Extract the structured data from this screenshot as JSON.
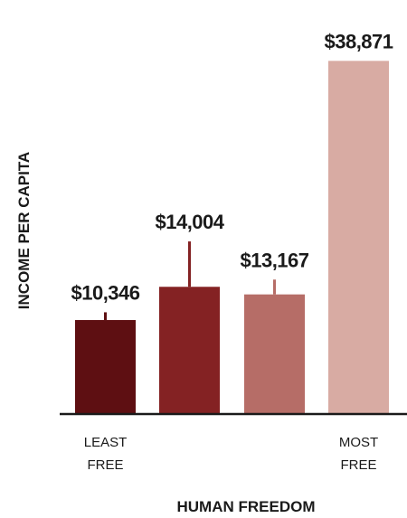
{
  "chart_data": {
    "type": "bar",
    "categories": [
      "LEAST FREE",
      "",
      "",
      "MOST FREE"
    ],
    "tick_labels": [
      [
        "LEAST",
        "FREE"
      ],
      [],
      [],
      [
        "MOST",
        "FREE"
      ]
    ],
    "values": [
      10346,
      14004,
      13167,
      38871
    ],
    "value_labels": [
      "$10,346",
      "$14,004",
      "$13,167",
      "$38,871"
    ],
    "error_upper": [
      11200,
      19000,
      14800,
      38871
    ],
    "bar_colors": [
      "#5e0f12",
      "#842223",
      "#b66d67",
      "#d8aba3"
    ],
    "xlabel": "HUMAN FREEDOM",
    "ylabel": "INCOME PER CAPITA",
    "ylim": [
      0,
      40000
    ],
    "grid": false,
    "axis_color": "#1a1a1a"
  }
}
